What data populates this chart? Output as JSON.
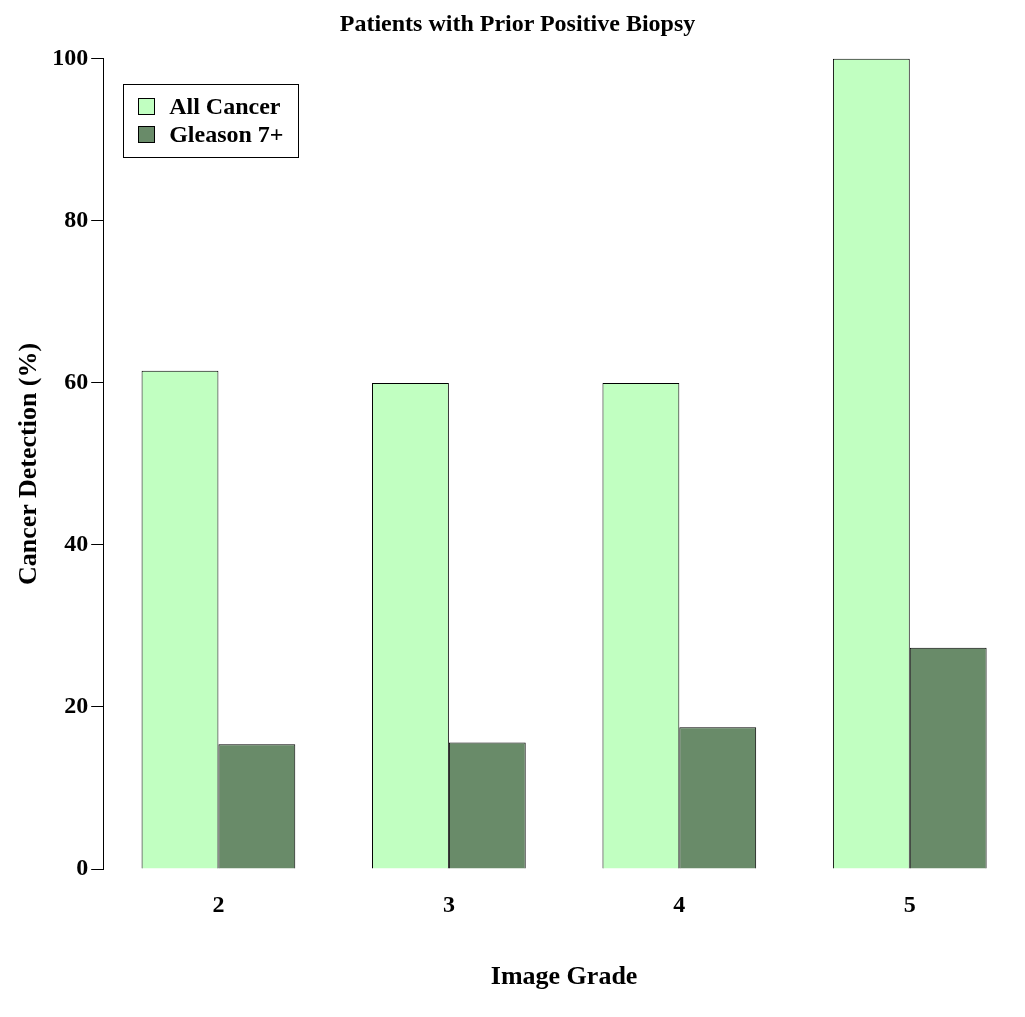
{
  "chart_data": {
    "type": "bar",
    "title": "Patients with Prior Positive Biopsy",
    "xlabel": "Image Grade",
    "ylabel": "Cancer Detection (%)",
    "categories": [
      "2",
      "3",
      "4",
      "5"
    ],
    "series": [
      {
        "name": "All Cancer",
        "color": "#c1ffc1",
        "values": [
          61.5,
          60,
          60,
          100
        ]
      },
      {
        "name": "Gleason 7+",
        "color": "#698b69",
        "values": [
          15.4,
          15.6,
          17.5,
          27.3
        ]
      }
    ],
    "ylim": [
      0,
      100
    ],
    "yticks": [
      0,
      20,
      40,
      60,
      80,
      100
    ],
    "grid": false,
    "legend": "top left"
  }
}
